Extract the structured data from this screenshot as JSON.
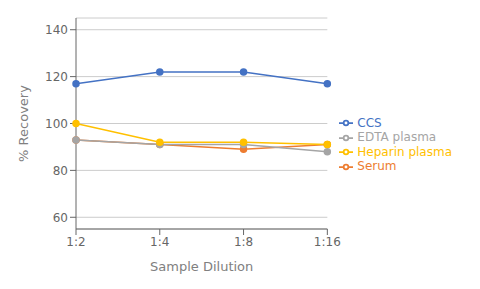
{
  "chart_data": {
    "type": "line",
    "categories": [
      "1:2",
      "1:4",
      "1:8",
      "1:16"
    ],
    "series": [
      {
        "name": "CCS",
        "color": "#4472C4",
        "marker": "circle",
        "values": [
          117,
          122,
          122,
          117
        ]
      },
      {
        "name": "Serum",
        "color": "#ED7D31",
        "marker": "circle",
        "values": [
          93,
          91,
          89,
          91
        ]
      },
      {
        "name": "EDTA plasma",
        "color": "#A5A5A5",
        "marker": "circle",
        "values": [
          93,
          91,
          91,
          88
        ]
      },
      {
        "name": "Heparin plasma",
        "color": "#FFC000",
        "marker": "circle",
        "values": [
          100,
          92,
          92,
          91
        ]
      }
    ],
    "xlabel": "Sample Dilution",
    "ylabel": "% Recovery",
    "ylim": [
      55,
      145
    ],
    "yticks": [
      60,
      80,
      100,
      120,
      140
    ],
    "grid": true,
    "legend": "right"
  }
}
